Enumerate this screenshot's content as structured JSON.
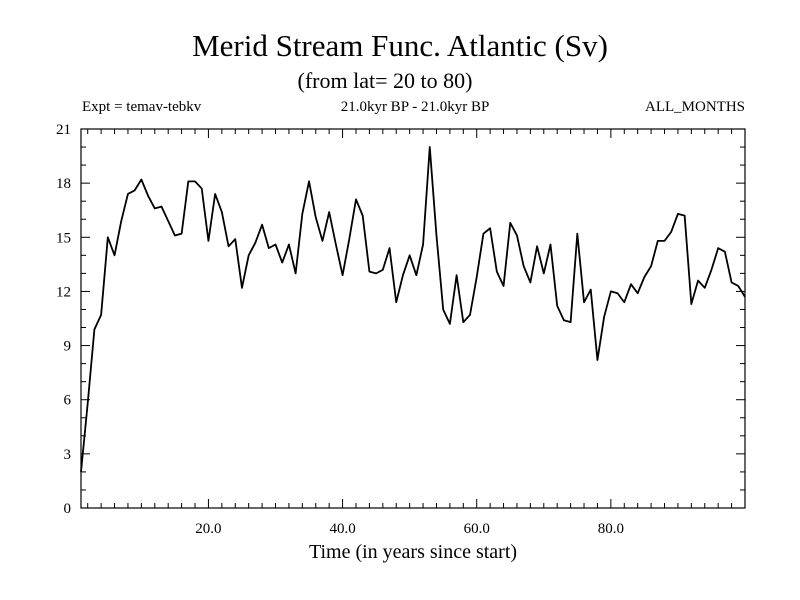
{
  "chart_data": {
    "type": "line",
    "title": "Merid Stream Func. Atlantic (Sv)",
    "subtitle": "(from lat= 20 to 80)",
    "expt_label": "Expt = temav-tebkv",
    "period_label": "21.0kyr BP - 21.0kyr BP",
    "months_label": "ALL_MONTHS",
    "xlabel": "Time (in years since start)",
    "ylabel": "",
    "xlim": [
      1,
      100
    ],
    "ylim": [
      0,
      21
    ],
    "xticks": [
      20.0,
      40.0,
      60.0,
      80.0
    ],
    "xtick_labels": [
      "20.0",
      "40.0",
      "60.0",
      "80.0"
    ],
    "yticks": [
      0,
      3,
      6,
      9,
      12,
      15,
      18,
      21
    ],
    "ytick_labels": [
      "0",
      "3",
      "6",
      "9",
      "12",
      "15",
      "18",
      "21"
    ],
    "grid": false,
    "series": [
      {
        "name": "Merid Stream Func.",
        "x": [
          1,
          2,
          3,
          4,
          5,
          6,
          7,
          8,
          9,
          10,
          11,
          12,
          13,
          14,
          15,
          16,
          17,
          18,
          19,
          20,
          21,
          22,
          23,
          24,
          25,
          26,
          27,
          28,
          29,
          30,
          31,
          32,
          33,
          34,
          35,
          36,
          37,
          38,
          39,
          40,
          41,
          42,
          43,
          44,
          45,
          46,
          47,
          48,
          49,
          50,
          51,
          52,
          53,
          54,
          55,
          56,
          57,
          58,
          59,
          60,
          61,
          62,
          63,
          64,
          65,
          66,
          67,
          68,
          69,
          70,
          71,
          72,
          73,
          74,
          75,
          76,
          77,
          78,
          79,
          80,
          81,
          82,
          83,
          84,
          85,
          86,
          87,
          88,
          89,
          90,
          91,
          92,
          93,
          94,
          95,
          96,
          97,
          98,
          99,
          100
        ],
        "values": [
          2.0,
          5.8,
          9.9,
          10.7,
          15.0,
          14.0,
          15.9,
          17.4,
          17.6,
          18.2,
          17.3,
          16.6,
          16.7,
          15.9,
          15.1,
          15.2,
          18.1,
          18.1,
          17.7,
          14.8,
          17.4,
          16.4,
          14.5,
          14.9,
          12.2,
          14.0,
          14.7,
          15.7,
          14.4,
          14.6,
          13.6,
          14.6,
          13.0,
          16.3,
          18.1,
          16.1,
          14.8,
          16.4,
          14.6,
          12.9,
          14.9,
          17.1,
          16.2,
          13.1,
          13.0,
          13.2,
          14.4,
          11.4,
          12.9,
          14.0,
          12.9,
          14.6,
          20.0,
          15.1,
          11.0,
          10.2,
          12.9,
          10.3,
          10.7,
          12.8,
          15.2,
          15.5,
          13.1,
          12.3,
          15.8,
          15.1,
          13.4,
          12.5,
          14.5,
          13.0,
          14.6,
          11.2,
          10.4,
          10.3,
          15.2,
          11.4,
          12.1,
          8.2,
          10.6,
          12.0,
          11.9,
          11.4,
          12.4,
          11.9,
          12.8,
          13.4,
          14.8,
          14.8,
          15.3,
          16.3,
          16.2,
          11.3,
          12.6,
          12.2,
          13.2,
          14.4,
          14.2,
          12.5,
          12.3,
          11.7
        ]
      }
    ]
  }
}
